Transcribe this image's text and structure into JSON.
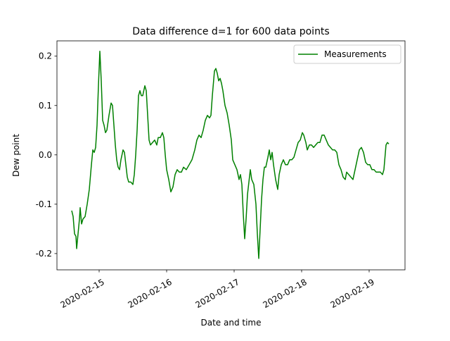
{
  "chart_data": {
    "type": "line",
    "title": "Data difference d=1 for 600 data points",
    "x_label": "Date and time",
    "y_label": "Dew point",
    "x": [
      "2020-02-14 14:15",
      "2020-02-14 14:45",
      "2020-02-14 15:15",
      "2020-02-14 15:45",
      "2020-02-14 16:00",
      "2020-02-14 16:30",
      "2020-02-14 17:00",
      "2020-02-14 17:15",
      "2020-02-14 17:45",
      "2020-02-14 18:15",
      "2020-02-14 19:00",
      "2020-02-14 19:45",
      "2020-02-14 20:30",
      "2020-02-14 21:15",
      "2020-02-14 21:45",
      "2020-02-14 22:15",
      "2020-02-14 22:45",
      "2020-02-14 23:15",
      "2020-02-14 23:45",
      "2020-02-15 00:15",
      "2020-02-15 00:45",
      "2020-02-15 01:15",
      "2020-02-15 01:45",
      "2020-02-15 02:15",
      "2020-02-15 02:45",
      "2020-02-15 03:30",
      "2020-02-15 04:15",
      "2020-02-15 04:45",
      "2020-02-15 05:15",
      "2020-02-15 05:45",
      "2020-02-15 06:15",
      "2020-02-15 06:45",
      "2020-02-15 07:15",
      "2020-02-15 07:45",
      "2020-02-15 08:30",
      "2020-02-15 09:00",
      "2020-02-15 09:30",
      "2020-02-15 10:00",
      "2020-02-15 10:30",
      "2020-02-15 11:15",
      "2020-02-15 12:00",
      "2020-02-15 12:30",
      "2020-02-15 13:00",
      "2020-02-15 13:30",
      "2020-02-15 14:00",
      "2020-02-15 14:30",
      "2020-02-15 15:00",
      "2020-02-15 15:30",
      "2020-02-15 16:15",
      "2020-02-15 16:45",
      "2020-02-15 17:15",
      "2020-02-15 17:45",
      "2020-02-15 18:15",
      "2020-02-15 19:00",
      "2020-02-15 19:45",
      "2020-02-15 20:30",
      "2020-02-15 21:00",
      "2020-02-15 21:45",
      "2020-02-15 22:30",
      "2020-02-15 23:00",
      "2020-02-15 23:30",
      "2020-02-16 00:00",
      "2020-02-16 00:45",
      "2020-02-16 01:30",
      "2020-02-16 02:15",
      "2020-02-16 03:00",
      "2020-02-16 03:45",
      "2020-02-16 04:30",
      "2020-02-16 05:15",
      "2020-02-16 06:00",
      "2020-02-16 07:00",
      "2020-02-16 08:00",
      "2020-02-16 09:00",
      "2020-02-16 10:00",
      "2020-02-16 10:45",
      "2020-02-16 11:30",
      "2020-02-16 12:15",
      "2020-02-16 13:00",
      "2020-02-16 13:45",
      "2020-02-16 14:30",
      "2020-02-16 15:15",
      "2020-02-16 15:45",
      "2020-02-16 16:15",
      "2020-02-16 17:00",
      "2020-02-16 17:30",
      "2020-02-16 18:00",
      "2020-02-16 18:30",
      "2020-02-16 19:00",
      "2020-02-16 19:30",
      "2020-02-16 20:00",
      "2020-02-16 20:45",
      "2020-02-16 21:30",
      "2020-02-16 22:15",
      "2020-02-16 23:00",
      "2020-02-16 23:30",
      "2020-02-17 00:15",
      "2020-02-17 01:00",
      "2020-02-17 01:45",
      "2020-02-17 02:15",
      "2020-02-17 02:45",
      "2020-02-17 03:15",
      "2020-02-17 03:45",
      "2020-02-17 04:15",
      "2020-02-17 04:45",
      "2020-02-17 05:15",
      "2020-02-17 05:45",
      "2020-02-17 06:15",
      "2020-02-17 07:00",
      "2020-02-17 07:45",
      "2020-02-17 08:15",
      "2020-02-17 08:45",
      "2020-02-17 09:15",
      "2020-02-17 09:45",
      "2020-02-17 10:15",
      "2020-02-17 10:45",
      "2020-02-17 11:15",
      "2020-02-17 12:00",
      "2020-02-17 12:30",
      "2020-02-17 13:00",
      "2020-02-17 13:30",
      "2020-02-17 14:00",
      "2020-02-17 14:45",
      "2020-02-17 15:30",
      "2020-02-17 16:00",
      "2020-02-17 16:45",
      "2020-02-17 17:30",
      "2020-02-17 18:15",
      "2020-02-17 19:00",
      "2020-02-17 19:45",
      "2020-02-17 20:30",
      "2020-02-17 21:15",
      "2020-02-17 22:00",
      "2020-02-17 22:45",
      "2020-02-17 23:30",
      "2020-02-18 00:15",
      "2020-02-18 00:45",
      "2020-02-18 01:30",
      "2020-02-18 02:00",
      "2020-02-18 02:45",
      "2020-02-18 03:30",
      "2020-02-18 04:15",
      "2020-02-18 05:00",
      "2020-02-18 05:45",
      "2020-02-18 06:30",
      "2020-02-18 07:15",
      "2020-02-18 08:00",
      "2020-02-18 08:45",
      "2020-02-18 09:30",
      "2020-02-18 10:15",
      "2020-02-18 11:00",
      "2020-02-18 11:45",
      "2020-02-18 12:30",
      "2020-02-18 13:15",
      "2020-02-18 14:00",
      "2020-02-18 14:45",
      "2020-02-18 15:30",
      "2020-02-18 16:00",
      "2020-02-18 16:45",
      "2020-02-18 17:30",
      "2020-02-18 18:15",
      "2020-02-18 19:00",
      "2020-02-18 19:45",
      "2020-02-18 20:30",
      "2020-02-18 21:15",
      "2020-02-18 22:00",
      "2020-02-18 22:45",
      "2020-02-18 23:30",
      "2020-02-19 00:15",
      "2020-02-19 01:00",
      "2020-02-19 01:45",
      "2020-02-19 02:30",
      "2020-02-19 03:15",
      "2020-02-19 04:00",
      "2020-02-19 04:45",
      "2020-02-19 05:15",
      "2020-02-19 06:00",
      "2020-02-19 06:30",
      "2020-02-19 07:00"
    ],
    "series": [
      {
        "name": "Measurements",
        "color": "#008000",
        "values": [
          -0.113,
          -0.125,
          -0.16,
          -0.165,
          -0.19,
          -0.16,
          -0.13,
          -0.107,
          -0.14,
          -0.13,
          -0.125,
          -0.1,
          -0.07,
          -0.02,
          0.01,
          0.005,
          0.015,
          0.06,
          0.14,
          0.21,
          0.15,
          0.07,
          0.06,
          0.045,
          0.05,
          0.08,
          0.105,
          0.1,
          0.06,
          0.02,
          -0.01,
          -0.025,
          -0.03,
          -0.01,
          0.01,
          0.005,
          -0.02,
          -0.045,
          -0.055,
          -0.055,
          -0.06,
          -0.04,
          0.0,
          0.05,
          0.12,
          0.13,
          0.12,
          0.12,
          0.14,
          0.13,
          0.08,
          0.03,
          0.02,
          0.025,
          0.03,
          0.02,
          0.035,
          0.035,
          0.045,
          0.035,
          0.0,
          -0.03,
          -0.05,
          -0.075,
          -0.065,
          -0.04,
          -0.03,
          -0.035,
          -0.035,
          -0.025,
          -0.03,
          -0.02,
          -0.01,
          0.01,
          0.03,
          0.04,
          0.035,
          0.05,
          0.07,
          0.08,
          0.075,
          0.08,
          0.12,
          0.17,
          0.175,
          0.165,
          0.15,
          0.155,
          0.145,
          0.13,
          0.1,
          0.085,
          0.06,
          0.03,
          -0.01,
          -0.02,
          -0.03,
          -0.05,
          -0.04,
          -0.06,
          -0.12,
          -0.17,
          -0.13,
          -0.08,
          -0.055,
          -0.03,
          -0.05,
          -0.06,
          -0.1,
          -0.16,
          -0.21,
          -0.15,
          -0.09,
          -0.05,
          -0.025,
          -0.025,
          -0.005,
          0.01,
          -0.01,
          0.005,
          -0.02,
          -0.05,
          -0.07,
          -0.04,
          -0.02,
          -0.01,
          -0.02,
          -0.02,
          -0.01,
          -0.01,
          -0.005,
          0.01,
          0.025,
          0.03,
          0.045,
          0.04,
          0.025,
          0.01,
          0.02,
          0.02,
          0.015,
          0.02,
          0.025,
          0.025,
          0.04,
          0.04,
          0.03,
          0.02,
          0.015,
          0.01,
          0.01,
          0.005,
          -0.02,
          -0.03,
          -0.045,
          -0.05,
          -0.035,
          -0.04,
          -0.045,
          -0.05,
          -0.03,
          -0.01,
          0.01,
          0.015,
          0.005,
          -0.015,
          -0.02,
          -0.02,
          -0.03,
          -0.03,
          -0.035,
          -0.035,
          -0.035,
          -0.04,
          -0.03,
          0.02,
          0.025,
          0.022
        ]
      }
    ],
    "xlim": [
      "2020-02-14 09:00",
      "2020-02-19 12:45"
    ],
    "xticks": [
      "2020-02-15",
      "2020-02-16",
      "2020-02-17",
      "2020-02-18",
      "2020-02-19"
    ],
    "ylim": [
      -0.233,
      0.231
    ],
    "yticks": [
      -0.2,
      -0.1,
      {
        "value": 0,
        "label": "0.0"
      },
      0.1,
      0.2
    ],
    "legend": "upper right",
    "grid": false
  }
}
